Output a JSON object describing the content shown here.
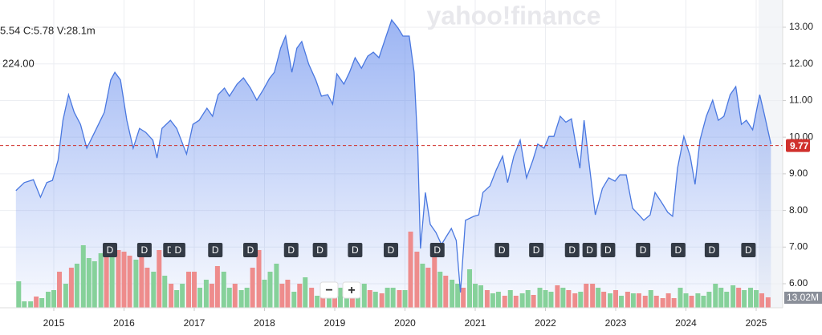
{
  "chart_data": {
    "type": "line",
    "watermark": "yahoo!finance",
    "ohlc_text": "5.54  C:5.78  V:28.1m",
    "cut_label": "224.00",
    "xlim": [
      2014.234,
      2025.377
    ],
    "xticks": [
      2015,
      2016,
      2017,
      2018,
      2019,
      2020,
      2021,
      2022,
      2023,
      2024,
      2025
    ],
    "ylim": [
      5.344,
      13.744
    ],
    "yticks": [
      {
        "value": 6,
        "label": "6.00"
      },
      {
        "value": 7,
        "label": "7.00"
      },
      {
        "value": 8,
        "label": "8.00"
      },
      {
        "value": 9,
        "label": "9.00"
      },
      {
        "value": 10,
        "label": "10.00"
      },
      {
        "value": 11,
        "label": "11.00"
      },
      {
        "value": 12,
        "label": "12.00"
      },
      {
        "value": 13,
        "label": "13.00"
      }
    ],
    "grid": true,
    "price": {
      "color": "#4a78e0",
      "x": [
        2014.46,
        2014.58,
        2014.71,
        2014.81,
        2014.9,
        2014.98,
        2015.06,
        2015.13,
        2015.21,
        2015.29,
        2015.38,
        2015.47,
        2015.58,
        2015.72,
        2015.81,
        2015.87,
        2015.95,
        2016.04,
        2016.13,
        2016.22,
        2016.31,
        2016.41,
        2016.47,
        2016.54,
        2016.66,
        2016.75,
        2016.89,
        2016.98,
        2017.07,
        2017.18,
        2017.26,
        2017.34,
        2017.43,
        2017.5,
        2017.61,
        2017.7,
        2017.8,
        2017.89,
        2017.98,
        2018.07,
        2018.14,
        2018.23,
        2018.3,
        2018.39,
        2018.46,
        2018.53,
        2018.63,
        2018.73,
        2018.81,
        2018.9,
        2018.97,
        2019.03,
        2019.13,
        2019.21,
        2019.29,
        2019.38,
        2019.47,
        2019.55,
        2019.63,
        2019.72,
        2019.81,
        2019.9,
        2019.97,
        2020.06,
        2020.13,
        2020.18,
        2020.22,
        2020.29,
        2020.36,
        2020.44,
        2020.52,
        2020.59,
        2020.66,
        2020.73,
        2020.79,
        2020.86,
        2020.98,
        2021.05,
        2021.11,
        2021.21,
        2021.3,
        2021.39,
        2021.46,
        2021.55,
        2021.64,
        2021.73,
        2021.82,
        2021.89,
        2021.98,
        2022.05,
        2022.12,
        2022.21,
        2022.29,
        2022.37,
        2022.44,
        2022.49,
        2022.55,
        2022.63,
        2022.71,
        2022.81,
        2022.9,
        2022.99,
        2023.06,
        2023.15,
        2023.24,
        2023.33,
        2023.4,
        2023.49,
        2023.56,
        2023.65,
        2023.74,
        2023.81,
        2023.88,
        2023.97,
        2024.06,
        2024.13,
        2024.2,
        2024.29,
        2024.38,
        2024.46,
        2024.54,
        2024.63,
        2024.71,
        2024.79,
        2024.86,
        2024.95,
        2025.05,
        2025.11,
        2025.21
      ],
      "values": [
        8.54,
        8.76,
        8.84,
        8.36,
        8.76,
        8.82,
        9.37,
        10.46,
        11.16,
        10.68,
        10.35,
        9.7,
        10.13,
        10.68,
        11.56,
        11.77,
        11.56,
        10.46,
        9.7,
        10.24,
        10.13,
        9.92,
        9.43,
        10.24,
        10.46,
        10.24,
        9.54,
        10.35,
        10.46,
        10.79,
        10.57,
        11.16,
        11.34,
        11.12,
        11.45,
        11.62,
        11.34,
        11.01,
        11.29,
        11.6,
        11.77,
        12.43,
        12.76,
        11.77,
        12.43,
        12.61,
        11.99,
        11.56,
        11.12,
        11.16,
        10.9,
        11.73,
        11.45,
        11.77,
        12.17,
        11.88,
        12.21,
        12.32,
        12.17,
        12.69,
        13.2,
        12.98,
        12.76,
        12.76,
        11.77,
        9.81,
        6.96,
        8.49,
        7.62,
        7.4,
        7.07,
        7.29,
        7.51,
        7.18,
        5.76,
        7.73,
        7.84,
        7.88,
        8.49,
        8.67,
        9.11,
        9.48,
        8.76,
        9.48,
        9.92,
        8.89,
        9.37,
        9.81,
        9.7,
        10.02,
        10.02,
        10.57,
        10.41,
        10.5,
        9.7,
        9.15,
        10.46,
        9.15,
        7.88,
        8.6,
        8.89,
        8.8,
        8.97,
        8.97,
        8.06,
        7.88,
        7.73,
        7.88,
        8.49,
        8.23,
        7.95,
        7.84,
        9.15,
        10.02,
        9.48,
        8.71,
        9.92,
        10.57,
        11.01,
        10.46,
        10.57,
        11.16,
        11.38,
        10.35,
        10.46,
        10.2,
        11.16,
        10.68,
        9.81
      ]
    },
    "current_price": 9.77,
    "current_price_color": "#d0312d",
    "volume": {
      "volume_lim": [
        0,
        384
      ],
      "x": [
        2014.5,
        2014.58,
        2014.67,
        2014.75,
        2014.83,
        2014.92,
        2015.0,
        2015.08,
        2015.17,
        2015.25,
        2015.33,
        2015.42,
        2015.5,
        2015.58,
        2015.67,
        2015.75,
        2015.83,
        2015.92,
        2016.0,
        2016.08,
        2016.17,
        2016.25,
        2016.33,
        2016.42,
        2016.5,
        2016.58,
        2016.67,
        2016.75,
        2016.83,
        2016.92,
        2017.0,
        2017.08,
        2017.17,
        2017.25,
        2017.33,
        2017.42,
        2017.5,
        2017.58,
        2017.67,
        2017.75,
        2017.83,
        2017.92,
        2018.0,
        2018.08,
        2018.17,
        2018.25,
        2018.33,
        2018.42,
        2018.5,
        2018.58,
        2018.67,
        2018.75,
        2018.83,
        2018.92,
        2019.0,
        2019.08,
        2019.17,
        2019.25,
        2019.33,
        2019.42,
        2019.5,
        2019.58,
        2019.67,
        2019.75,
        2019.83,
        2019.92,
        2020.0,
        2020.08,
        2020.17,
        2020.25,
        2020.33,
        2020.42,
        2020.5,
        2020.58,
        2020.67,
        2020.75,
        2020.83,
        2020.92,
        2021.0,
        2021.08,
        2021.17,
        2021.25,
        2021.33,
        2021.42,
        2021.5,
        2021.58,
        2021.67,
        2021.75,
        2021.83,
        2021.92,
        2022.0,
        2022.08,
        2022.17,
        2022.25,
        2022.33,
        2022.42,
        2022.5,
        2022.58,
        2022.67,
        2022.75,
        2022.83,
        2022.92,
        2023.0,
        2023.08,
        2023.17,
        2023.25,
        2023.33,
        2023.42,
        2023.5,
        2023.58,
        2023.67,
        2023.75,
        2023.83,
        2023.92,
        2024.0,
        2024.08,
        2024.17,
        2024.25,
        2024.33,
        2024.42,
        2024.5,
        2024.58,
        2024.67,
        2024.75,
        2024.83,
        2024.92,
        2025.0,
        2025.08,
        2025.17
      ],
      "values": [
        33,
        8,
        8,
        14,
        12,
        20,
        22,
        45,
        30,
        50,
        55,
        78,
        62,
        58,
        68,
        65,
        75,
        72,
        70,
        65,
        60,
        72,
        50,
        45,
        72,
        40,
        30,
        22,
        30,
        45,
        45,
        25,
        35,
        30,
        52,
        45,
        25,
        30,
        22,
        25,
        50,
        72,
        35,
        45,
        55,
        30,
        35,
        20,
        30,
        38,
        25,
        15,
        20,
        22,
        18,
        25,
        22,
        15,
        20,
        30,
        22,
        20,
        18,
        25,
        25,
        22,
        22,
        95,
        70,
        55,
        50,
        78,
        45,
        40,
        35,
        30,
        25,
        48,
        30,
        28,
        22,
        18,
        20,
        15,
        22,
        15,
        18,
        22,
        16,
        25,
        22,
        20,
        28,
        25,
        22,
        18,
        20,
        30,
        30,
        25,
        20,
        18,
        22,
        15,
        20,
        18,
        18,
        15,
        22,
        15,
        12,
        18,
        12,
        25,
        18,
        15,
        18,
        15,
        20,
        30,
        25,
        20,
        28,
        25,
        22,
        25,
        22,
        18,
        13.02
      ],
      "colors": [
        "#86d19a",
        "#86d19a",
        "#86d19a",
        "#ee8c8c",
        "#86d19a",
        "#86d19a",
        "#86d19a",
        "#ee8c8c",
        "#86d19a",
        "#ee8c8c",
        "#86d19a",
        "#86d19a",
        "#86d19a",
        "#86d19a",
        "#86d19a",
        "#ee8c8c",
        "#86d19a",
        "#ee8c8c",
        "#ee8c8c",
        "#ee8c8c",
        "#86d19a",
        "#ee8c8c",
        "#ee8c8c",
        "#86d19a",
        "#ee8c8c",
        "#86d19a",
        "#ee8c8c",
        "#86d19a",
        "#86d19a",
        "#ee8c8c",
        "#ee8c8c",
        "#86d19a",
        "#86d19a",
        "#ee8c8c",
        "#ee8c8c",
        "#86d19a",
        "#86d19a",
        "#ee8c8c",
        "#86d19a",
        "#86d19a",
        "#ee8c8c",
        "#ee8c8c",
        "#86d19a",
        "#86d19a",
        "#86d19a",
        "#ee8c8c",
        "#ee8c8c",
        "#86d19a",
        "#ee8c8c",
        "#86d19a",
        "#ee8c8c",
        "#86d19a",
        "#ee8c8c",
        "#86d19a",
        "#ee8c8c",
        "#86d19a",
        "#86d19a",
        "#ee8c8c",
        "#86d19a",
        "#86d19a",
        "#ee8c8c",
        "#86d19a",
        "#ee8c8c",
        "#86d19a",
        "#86d19a",
        "#ee8c8c",
        "#86d19a",
        "#ee8c8c",
        "#ee8c8c",
        "#86d19a",
        "#ee8c8c",
        "#ee8c8c",
        "#86d19a",
        "#ee8c8c",
        "#86d19a",
        "#86d19a",
        "#ee8c8c",
        "#86d19a",
        "#86d19a",
        "#86d19a",
        "#ee8c8c",
        "#86d19a",
        "#86d19a",
        "#ee8c8c",
        "#86d19a",
        "#ee8c8c",
        "#86d19a",
        "#86d19a",
        "#ee8c8c",
        "#86d19a",
        "#86d19a",
        "#86d19a",
        "#ee8c8c",
        "#86d19a",
        "#ee8c8c",
        "#ee8c8c",
        "#86d19a",
        "#ee8c8c",
        "#ee8c8c",
        "#86d19a",
        "#ee8c8c",
        "#86d19a",
        "#ee8c8c",
        "#86d19a",
        "#ee8c8c",
        "#86d19a",
        "#ee8c8c",
        "#ee8c8c",
        "#86d19a",
        "#ee8c8c",
        "#ee8c8c",
        "#ee8c8c",
        "#ee8c8c",
        "#86d19a",
        "#86d19a",
        "#ee8c8c",
        "#86d19a",
        "#86d19a",
        "#86d19a",
        "#86d19a",
        "#86d19a",
        "#86d19a",
        "#86d19a",
        "#ee8c8c",
        "#86d19a",
        "#86d19a",
        "#86d19a",
        "#ee8c8c",
        "#ee8c8c"
      ]
    },
    "current_volume_label": "13.02M",
    "dividends": {
      "label": "D",
      "x": [
        2015.8,
        2016.29,
        2016.66,
        2016.77,
        2017.3,
        2017.8,
        2018.38,
        2018.79,
        2019.29,
        2019.8,
        2020.46,
        2021.38,
        2021.87,
        2022.38,
        2022.63,
        2022.89,
        2023.39,
        2023.89,
        2024.37,
        2024.89
      ]
    },
    "zoom_out": "−",
    "zoom_in": "+"
  }
}
